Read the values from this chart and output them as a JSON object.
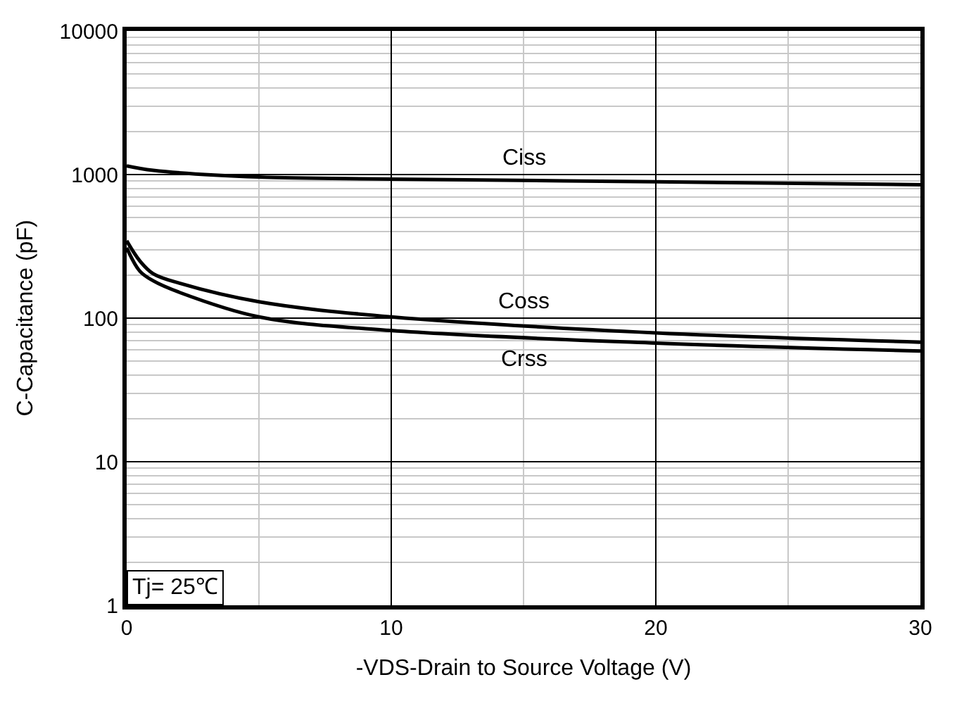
{
  "chart_data": {
    "type": "line",
    "xlabel": "-VDS-Drain to Source Voltage (V)",
    "ylabel": "C-Capacitance (pF)",
    "log": "y",
    "xlim": [
      0,
      30
    ],
    "ylim": [
      1,
      10000
    ],
    "xticks": [
      0,
      10,
      20,
      30
    ],
    "yticks": [
      1,
      10,
      100,
      1000,
      10000
    ],
    "grid": true,
    "legend": false,
    "marker": "none",
    "line_style": "solid",
    "series": [
      {
        "name": "Ciss",
        "color": "#000000",
        "x": [
          0,
          1,
          5,
          10,
          20,
          30
        ],
        "values": [
          1150,
          1070,
          960,
          930,
          890,
          850
        ]
      },
      {
        "name": "Coss",
        "color": "#000000",
        "x": [
          0,
          0.5,
          1,
          2,
          5,
          10,
          20,
          30
        ],
        "values": [
          346,
          250,
          204,
          175,
          130,
          102,
          79,
          68
        ]
      },
      {
        "name": "Crss",
        "color": "#000000",
        "x": [
          0,
          0.5,
          1,
          2,
          5,
          10,
          20,
          30
        ],
        "values": [
          309,
          212,
          182,
          151,
          102,
          82,
          67,
          59
        ]
      }
    ],
    "annotations": [
      "Tj= 25℃"
    ]
  }
}
